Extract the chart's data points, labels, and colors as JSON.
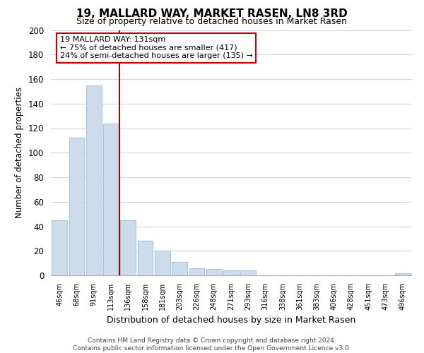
{
  "title": "19, MALLARD WAY, MARKET RASEN, LN8 3RD",
  "subtitle": "Size of property relative to detached houses in Market Rasen",
  "xlabel": "Distribution of detached houses by size in Market Rasen",
  "ylabel": "Number of detached properties",
  "categories": [
    "46sqm",
    "68sqm",
    "91sqm",
    "113sqm",
    "136sqm",
    "158sqm",
    "181sqm",
    "203sqm",
    "226sqm",
    "248sqm",
    "271sqm",
    "293sqm",
    "316sqm",
    "338sqm",
    "361sqm",
    "383sqm",
    "406sqm",
    "428sqm",
    "451sqm",
    "473sqm",
    "496sqm"
  ],
  "values": [
    45,
    112,
    155,
    124,
    45,
    28,
    20,
    11,
    6,
    5,
    4,
    4,
    0,
    0,
    0,
    0,
    0,
    0,
    0,
    0,
    2
  ],
  "bar_color": "#ccdcec",
  "bar_edge_color": "#a8c4dc",
  "vline_color": "#aa0000",
  "vline_x_idx": 3.5,
  "annotation_line1": "19 MALLARD WAY: 131sqm",
  "annotation_line2": "← 75% of detached houses are smaller (417)",
  "annotation_line3": "24% of semi-detached houses are larger (135) →",
  "annotation_box_color": "#ffffff",
  "annotation_box_edge": "#cc0000",
  "ylim": [
    0,
    200
  ],
  "yticks": [
    0,
    20,
    40,
    60,
    80,
    100,
    120,
    140,
    160,
    180,
    200
  ],
  "footer1": "Contains HM Land Registry data © Crown copyright and database right 2024.",
  "footer2": "Contains public sector information licensed under the Open Government Licence v3.0.",
  "background_color": "#ffffff",
  "grid_color": "#c8d8e8",
  "fig_width": 6.0,
  "fig_height": 5.0,
  "fig_dpi": 100
}
